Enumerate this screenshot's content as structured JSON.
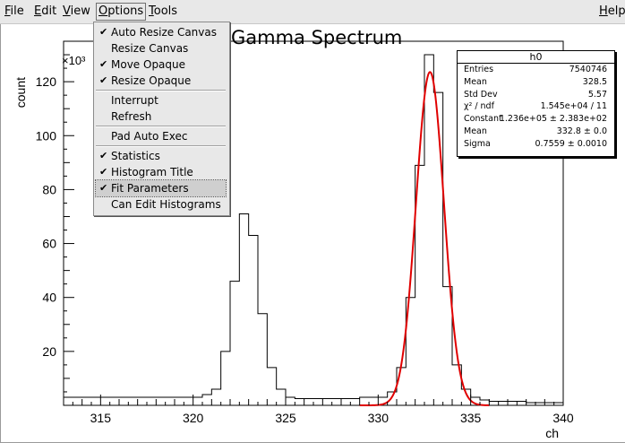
{
  "menubar": {
    "items": [
      {
        "label": "File",
        "key": "F",
        "rest": "ile"
      },
      {
        "label": "Edit",
        "key": "E",
        "rest": "dit"
      },
      {
        "label": "View",
        "key": "V",
        "rest": "iew"
      },
      {
        "label": "Options",
        "key": "O",
        "rest": "ptions"
      },
      {
        "label": "Tools",
        "key": "T",
        "rest": "ools"
      }
    ],
    "help": {
      "label": "Help",
      "key": "H",
      "rest": "elp"
    }
  },
  "options_menu": {
    "items": [
      {
        "label": "Auto Resize Canvas",
        "checked": true
      },
      {
        "label": "Resize Canvas",
        "checked": false
      },
      {
        "label": "Move Opaque",
        "checked": true
      },
      {
        "label": "Resize Opaque",
        "checked": true
      },
      {
        "label": "Interrupt",
        "checked": false
      },
      {
        "label": "Refresh",
        "checked": false
      },
      {
        "label": "Pad Auto Exec",
        "checked": false
      },
      {
        "label": "Statistics",
        "checked": true
      },
      {
        "label": "Histogram Title",
        "checked": true
      },
      {
        "label": "Fit Parameters",
        "checked": true,
        "highlighted": true
      },
      {
        "label": "Can Edit Histograms",
        "checked": false
      }
    ],
    "check_glyph": "✔"
  },
  "stats": {
    "title": "h0",
    "rows": [
      {
        "name": "Entries",
        "value": "7540746"
      },
      {
        "name": "Mean",
        "value": "328.5"
      },
      {
        "name": "Std Dev",
        "value": "5.57"
      },
      {
        "name": "χ² / ndf",
        "value": "1.545e+04 / 11"
      },
      {
        "name": "Constant",
        "value": "1.236e+05 ± 2.383e+02"
      },
      {
        "name": "Mean",
        "value": "332.8 ± 0.0"
      },
      {
        "name": "Sigma",
        "value": "0.7559 ± 0.0010"
      }
    ]
  },
  "chart_data": {
    "type": "bar",
    "title": "Gamma Spectrum",
    "xlabel": "ch",
    "ylabel": "count",
    "y_multiplier": "×10³",
    "xlim": [
      313,
      340
    ],
    "ylim": [
      0,
      135
    ],
    "xticks": [
      315,
      320,
      325,
      330,
      335,
      340
    ],
    "yticks": [
      20,
      40,
      60,
      80,
      100,
      120
    ],
    "histogram": {
      "name": "h0",
      "bin_width": 0.5,
      "edges": [
        313,
        313.5,
        314,
        314.5,
        315,
        315.5,
        316,
        316.5,
        317,
        317.5,
        318,
        318.5,
        319,
        319.5,
        320,
        320.5,
        321,
        321.5,
        322,
        322.5,
        323,
        323.5,
        324,
        324.5,
        325,
        325.5,
        326,
        326.5,
        327,
        327.5,
        328,
        328.5,
        329,
        329.5,
        330,
        330.5,
        331,
        331.5,
        332,
        332.5,
        333,
        333.5,
        334,
        334.5,
        335,
        335.5,
        336,
        336.5,
        337,
        337.5,
        338,
        338.5,
        339,
        339.5,
        340
      ],
      "values": [
        3,
        3,
        3,
        3,
        3,
        3,
        3,
        3,
        3,
        3,
        3,
        3,
        3,
        3,
        3,
        4,
        6,
        20,
        46,
        71,
        63,
        34,
        14,
        6,
        3,
        2.5,
        2.5,
        2.5,
        2.5,
        2.5,
        2.5,
        2.5,
        3,
        3,
        3,
        5,
        14,
        40,
        89,
        130,
        116,
        44,
        15,
        6,
        3,
        2,
        1.5,
        1.5,
        1.5,
        1.5,
        1,
        1,
        1,
        1
      ]
    },
    "fit": {
      "function": "gaus",
      "constant": 123600,
      "mean": 332.8,
      "sigma": 0.7559,
      "range": [
        329,
        336
      ],
      "color": "#e00000"
    },
    "line_color": "#000000"
  }
}
